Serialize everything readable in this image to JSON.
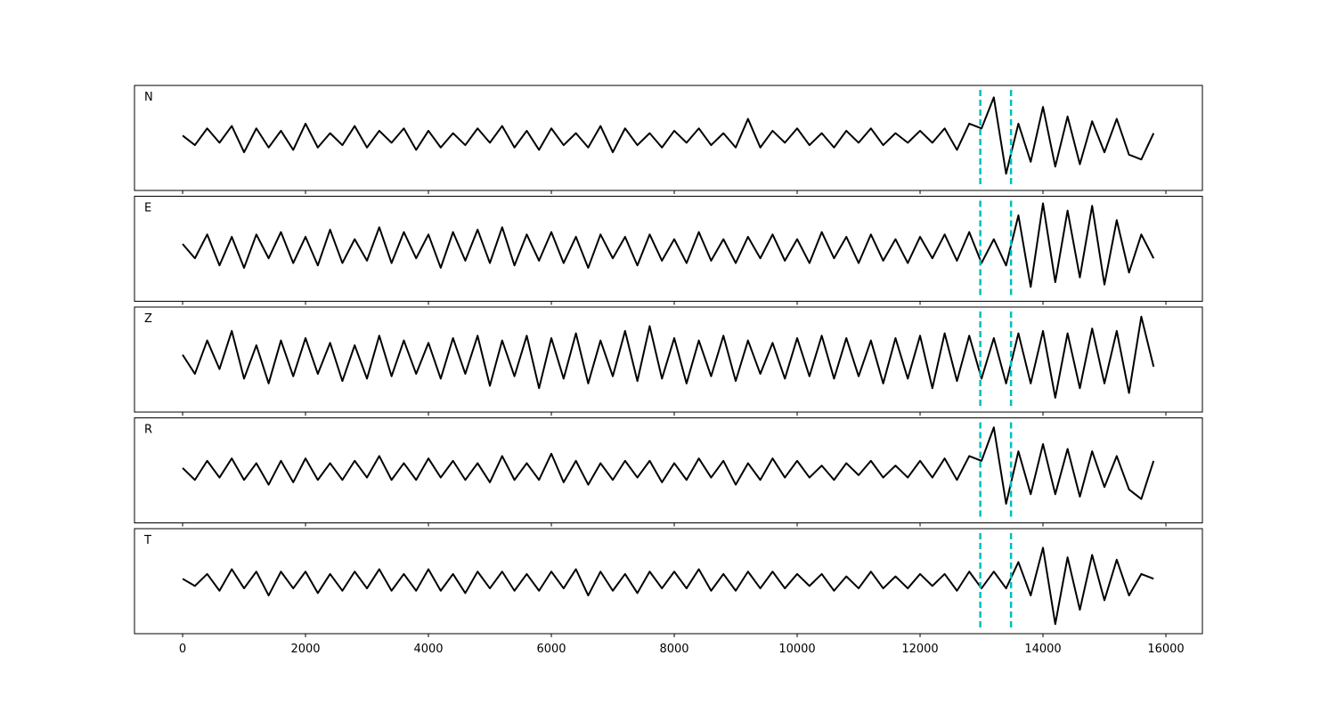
{
  "chart_data": {
    "type": "line",
    "x": [
      0,
      200,
      400,
      600,
      800,
      1000,
      1200,
      1400,
      1600,
      1800,
      2000,
      2200,
      2400,
      2600,
      2800,
      3000,
      3200,
      3400,
      3600,
      3800,
      4000,
      4200,
      4400,
      4600,
      4800,
      5000,
      5200,
      5400,
      5600,
      5800,
      6000,
      6200,
      6400,
      6600,
      6800,
      7000,
      7200,
      7400,
      7600,
      7800,
      8000,
      8200,
      8400,
      8600,
      8800,
      9000,
      9200,
      9400,
      9600,
      9800,
      10000,
      10200,
      10400,
      10600,
      10800,
      11000,
      11200,
      11400,
      11600,
      11800,
      12000,
      12200,
      12400,
      12600,
      12800,
      13000,
      13200,
      13400,
      13600,
      13800,
      14000,
      14200,
      14400,
      14600,
      14800,
      15000,
      15200,
      15400,
      15600,
      15800
    ],
    "xlim": [
      -783,
      16594
    ],
    "xticks": [
      0,
      2000,
      4000,
      6000,
      8000,
      10000,
      12000,
      14000,
      16000
    ],
    "ylim": [
      -1.1,
      1.1
    ],
    "vlines": [
      12980,
      13480
    ],
    "vline_color": "#00bfbf",
    "series": [
      {
        "name": "N",
        "color": "#000000",
        "values": [
          0.05,
          -0.15,
          0.2,
          -0.1,
          0.25,
          -0.3,
          0.2,
          -0.2,
          0.15,
          -0.25,
          0.3,
          -0.2,
          0.1,
          -0.15,
          0.25,
          -0.2,
          0.15,
          -0.1,
          0.2,
          -0.25,
          0.15,
          -0.2,
          0.1,
          -0.15,
          0.2,
          -0.1,
          0.25,
          -0.2,
          0.15,
          -0.25,
          0.2,
          -0.15,
          0.1,
          -0.2,
          0.25,
          -0.3,
          0.2,
          -0.15,
          0.1,
          -0.2,
          0.15,
          -0.1,
          0.2,
          -0.15,
          0.1,
          -0.2,
          0.4,
          -0.2,
          0.15,
          -0.1,
          0.2,
          -0.15,
          0.1,
          -0.2,
          0.15,
          -0.1,
          0.2,
          -0.15,
          0.1,
          -0.1,
          0.15,
          -0.1,
          0.2,
          -0.25,
          0.3,
          0.2,
          0.85,
          -0.75,
          0.3,
          -0.5,
          0.65,
          -0.6,
          0.45,
          -0.55,
          0.35,
          -0.3,
          0.4,
          -0.35,
          -0.45,
          0.1
        ]
      },
      {
        "name": "E",
        "color": "#000000",
        "values": [
          0.1,
          -0.2,
          0.3,
          -0.35,
          0.25,
          -0.4,
          0.3,
          -0.2,
          0.35,
          -0.3,
          0.25,
          -0.35,
          0.4,
          -0.3,
          0.2,
          -0.25,
          0.45,
          -0.3,
          0.35,
          -0.2,
          0.3,
          -0.4,
          0.35,
          -0.25,
          0.4,
          -0.3,
          0.45,
          -0.35,
          0.3,
          -0.25,
          0.35,
          -0.3,
          0.25,
          -0.4,
          0.3,
          -0.2,
          0.25,
          -0.35,
          0.3,
          -0.25,
          0.2,
          -0.3,
          0.35,
          -0.25,
          0.2,
          -0.3,
          0.25,
          -0.2,
          0.3,
          -0.25,
          0.2,
          -0.3,
          0.35,
          -0.2,
          0.25,
          -0.3,
          0.3,
          -0.25,
          0.2,
          -0.3,
          0.25,
          -0.2,
          0.3,
          -0.25,
          0.35,
          -0.3,
          0.2,
          -0.35,
          0.7,
          -0.8,
          0.95,
          -0.7,
          0.8,
          -0.6,
          0.9,
          -0.75,
          0.6,
          -0.5,
          0.3,
          -0.2
        ]
      },
      {
        "name": "Z",
        "color": "#000000",
        "values": [
          0.1,
          -0.3,
          0.4,
          -0.2,
          0.6,
          -0.4,
          0.3,
          -0.5,
          0.4,
          -0.35,
          0.45,
          -0.3,
          0.35,
          -0.45,
          0.3,
          -0.4,
          0.5,
          -0.35,
          0.4,
          -0.3,
          0.35,
          -0.4,
          0.45,
          -0.3,
          0.5,
          -0.55,
          0.4,
          -0.35,
          0.5,
          -0.6,
          0.45,
          -0.4,
          0.55,
          -0.5,
          0.4,
          -0.35,
          0.6,
          -0.45,
          0.7,
          -0.4,
          0.45,
          -0.5,
          0.4,
          -0.35,
          0.5,
          -0.45,
          0.4,
          -0.3,
          0.35,
          -0.4,
          0.45,
          -0.35,
          0.5,
          -0.4,
          0.45,
          -0.35,
          0.4,
          -0.5,
          0.45,
          -0.4,
          0.5,
          -0.6,
          0.55,
          -0.45,
          0.5,
          -0.4,
          0.45,
          -0.5,
          0.55,
          -0.5,
          0.6,
          -0.8,
          0.55,
          -0.6,
          0.65,
          -0.5,
          0.6,
          -0.7,
          0.9,
          -0.15
        ]
      },
      {
        "name": "R",
        "color": "#000000",
        "values": [
          0.05,
          -0.2,
          0.2,
          -0.15,
          0.25,
          -0.2,
          0.15,
          -0.3,
          0.2,
          -0.25,
          0.25,
          -0.2,
          0.15,
          -0.2,
          0.2,
          -0.15,
          0.3,
          -0.2,
          0.15,
          -0.2,
          0.25,
          -0.15,
          0.2,
          -0.2,
          0.15,
          -0.25,
          0.3,
          -0.2,
          0.15,
          -0.2,
          0.35,
          -0.25,
          0.2,
          -0.3,
          0.15,
          -0.2,
          0.2,
          -0.15,
          0.2,
          -0.25,
          0.15,
          -0.2,
          0.25,
          -0.15,
          0.2,
          -0.3,
          0.15,
          -0.2,
          0.25,
          -0.15,
          0.2,
          -0.15,
          0.1,
          -0.2,
          0.15,
          -0.1,
          0.2,
          -0.15,
          0.1,
          -0.15,
          0.2,
          -0.15,
          0.25,
          -0.2,
          0.3,
          0.2,
          0.9,
          -0.7,
          0.4,
          -0.5,
          0.55,
          -0.5,
          0.45,
          -0.55,
          0.4,
          -0.35,
          0.3,
          -0.4,
          -0.6,
          0.2
        ]
      },
      {
        "name": "T",
        "color": "#000000",
        "values": [
          0.05,
          -0.1,
          0.15,
          -0.2,
          0.25,
          -0.15,
          0.2,
          -0.3,
          0.2,
          -0.15,
          0.2,
          -0.25,
          0.15,
          -0.2,
          0.2,
          -0.15,
          0.25,
          -0.2,
          0.15,
          -0.2,
          0.25,
          -0.2,
          0.15,
          -0.25,
          0.2,
          -0.15,
          0.2,
          -0.2,
          0.15,
          -0.2,
          0.2,
          -0.15,
          0.25,
          -0.3,
          0.2,
          -0.2,
          0.15,
          -0.25,
          0.2,
          -0.15,
          0.2,
          -0.15,
          0.25,
          -0.2,
          0.15,
          -0.2,
          0.2,
          -0.15,
          0.2,
          -0.15,
          0.15,
          -0.1,
          0.15,
          -0.2,
          0.1,
          -0.15,
          0.2,
          -0.15,
          0.1,
          -0.15,
          0.15,
          -0.1,
          0.15,
          -0.2,
          0.2,
          -0.15,
          0.2,
          -0.15,
          0.4,
          -0.3,
          0.7,
          -0.9,
          0.5,
          -0.6,
          0.55,
          -0.4,
          0.45,
          -0.3,
          0.15,
          0.05
        ]
      }
    ]
  }
}
